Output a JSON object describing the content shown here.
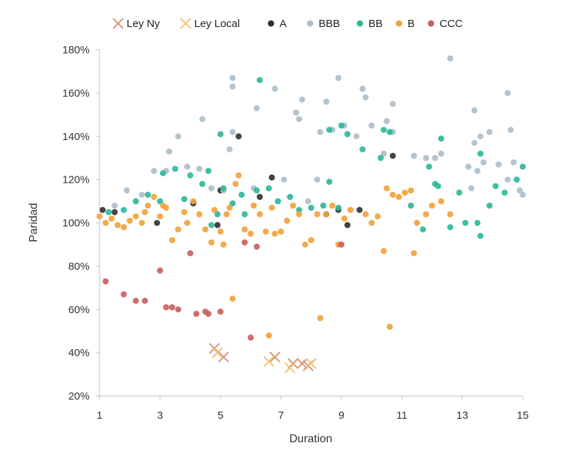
{
  "chart_data": {
    "type": "scatter",
    "title": "",
    "xlabel": "Duration",
    "ylabel": "Paridad",
    "xlim": [
      1,
      15
    ],
    "ylim": [
      20,
      180
    ],
    "x_ticks": [
      1,
      3,
      5,
      7,
      9,
      11,
      13,
      15
    ],
    "y_ticks": [
      20,
      40,
      60,
      80,
      100,
      120,
      140,
      160,
      180
    ],
    "y_tick_labels": [
      "20%",
      "40%",
      "60%",
      "80%",
      "100%",
      "120%",
      "140%",
      "160%",
      "180%"
    ],
    "legend_position": "top",
    "series": [
      {
        "name": "Ley Ny",
        "marker": "x",
        "color": "#d9967a",
        "points": [
          [
            4.8,
            42
          ],
          [
            5.1,
            38
          ],
          [
            6.8,
            38
          ],
          [
            7.4,
            35
          ],
          [
            7.7,
            35
          ],
          [
            7.9,
            34
          ]
        ]
      },
      {
        "name": "Ley Local",
        "marker": "x",
        "color": "#f2c27a",
        "points": [
          [
            4.9,
            40
          ],
          [
            6.6,
            36
          ],
          [
            7.3,
            33
          ],
          [
            8.0,
            35
          ]
        ]
      },
      {
        "name": "A",
        "marker": "dot",
        "color": "#333333",
        "points": [
          [
            1.1,
            106
          ],
          [
            1.5,
            105
          ],
          [
            2.9,
            100
          ],
          [
            4.1,
            109
          ],
          [
            4.9,
            99
          ],
          [
            5.0,
            115
          ],
          [
            5.6,
            140
          ],
          [
            6.3,
            112
          ],
          [
            6.7,
            121
          ],
          [
            8.5,
            104
          ],
          [
            8.9,
            106
          ],
          [
            9.2,
            99
          ],
          [
            9.6,
            106
          ],
          [
            10.7,
            131
          ]
        ]
      },
      {
        "name": "BBB",
        "marker": "dot",
        "color": "#aebfcb",
        "points": [
          [
            1.5,
            108
          ],
          [
            1.9,
            115
          ],
          [
            2.4,
            113
          ],
          [
            2.8,
            124
          ],
          [
            3.2,
            124
          ],
          [
            3.3,
            133
          ],
          [
            3.6,
            140
          ],
          [
            3.9,
            126
          ],
          [
            4.3,
            125
          ],
          [
            4.4,
            148
          ],
          [
            4.7,
            116
          ],
          [
            5.1,
            115
          ],
          [
            5.3,
            134
          ],
          [
            5.4,
            142
          ],
          [
            5.4,
            163
          ],
          [
            5.4,
            167
          ],
          [
            6.1,
            116
          ],
          [
            6.2,
            153
          ],
          [
            6.8,
            162
          ],
          [
            7.1,
            120
          ],
          [
            7.5,
            151
          ],
          [
            7.6,
            148
          ],
          [
            7.7,
            157
          ],
          [
            7.9,
            110
          ],
          [
            8.2,
            120
          ],
          [
            8.3,
            142
          ],
          [
            8.5,
            156
          ],
          [
            8.7,
            143
          ],
          [
            8.9,
            167
          ],
          [
            9.1,
            145
          ],
          [
            9.3,
            106
          ],
          [
            9.5,
            140
          ],
          [
            9.7,
            162
          ],
          [
            9.8,
            158
          ],
          [
            10.0,
            145
          ],
          [
            10.4,
            132
          ],
          [
            10.5,
            147
          ],
          [
            10.7,
            142
          ],
          [
            10.7,
            155
          ],
          [
            11.4,
            131
          ],
          [
            11.8,
            130
          ],
          [
            12.1,
            130
          ],
          [
            12.3,
            132
          ],
          [
            12.6,
            176
          ],
          [
            13.2,
            126
          ],
          [
            13.3,
            116
          ],
          [
            13.4,
            137
          ],
          [
            13.4,
            152
          ],
          [
            13.5,
            124
          ],
          [
            13.6,
            140
          ],
          [
            13.7,
            128
          ],
          [
            13.9,
            142
          ],
          [
            14.2,
            127
          ],
          [
            14.5,
            120
          ],
          [
            14.5,
            160
          ],
          [
            14.6,
            143
          ],
          [
            14.7,
            128
          ],
          [
            14.9,
            115
          ],
          [
            15.0,
            113
          ]
        ]
      },
      {
        "name": "BB",
        "marker": "dot",
        "color": "#2eb89a",
        "points": [
          [
            1.3,
            105
          ],
          [
            1.8,
            106
          ],
          [
            2.2,
            110
          ],
          [
            2.6,
            113
          ],
          [
            3.0,
            110
          ],
          [
            3.1,
            123
          ],
          [
            3.5,
            125
          ],
          [
            3.8,
            111
          ],
          [
            4.0,
            122
          ],
          [
            4.4,
            118
          ],
          [
            4.6,
            124
          ],
          [
            4.7,
            99
          ],
          [
            4.9,
            104
          ],
          [
            5.0,
            141
          ],
          [
            5.1,
            116
          ],
          [
            5.4,
            109
          ],
          [
            5.7,
            113
          ],
          [
            5.8,
            104
          ],
          [
            6.2,
            115
          ],
          [
            6.3,
            166
          ],
          [
            6.6,
            116
          ],
          [
            6.9,
            110
          ],
          [
            7.3,
            112
          ],
          [
            7.6,
            106
          ],
          [
            8.0,
            107
          ],
          [
            8.4,
            108
          ],
          [
            8.6,
            119
          ],
          [
            8.6,
            143
          ],
          [
            8.9,
            107
          ],
          [
            9.0,
            145
          ],
          [
            9.2,
            141
          ],
          [
            9.7,
            134
          ],
          [
            10.3,
            130
          ],
          [
            10.4,
            143
          ],
          [
            10.6,
            142
          ],
          [
            11.3,
            108
          ],
          [
            11.7,
            97
          ],
          [
            11.9,
            126
          ],
          [
            12.1,
            118
          ],
          [
            12.2,
            117
          ],
          [
            12.3,
            139
          ],
          [
            12.6,
            98
          ],
          [
            12.9,
            114
          ],
          [
            13.1,
            100
          ],
          [
            13.5,
            100
          ],
          [
            13.6,
            132
          ],
          [
            13.6,
            94
          ],
          [
            13.9,
            108
          ],
          [
            14.1,
            117
          ],
          [
            14.4,
            114
          ],
          [
            14.8,
            120
          ],
          [
            15.0,
            126
          ]
        ]
      },
      {
        "name": "B",
        "marker": "dot",
        "color": "#f2a33a",
        "points": [
          [
            1.0,
            103
          ],
          [
            1.2,
            100
          ],
          [
            1.4,
            102
          ],
          [
            1.6,
            99
          ],
          [
            1.8,
            98
          ],
          [
            2.0,
            101
          ],
          [
            2.2,
            103
          ],
          [
            2.4,
            100
          ],
          [
            2.5,
            105
          ],
          [
            2.6,
            108
          ],
          [
            2.8,
            112
          ],
          [
            3.0,
            103
          ],
          [
            3.1,
            108
          ],
          [
            3.2,
            107
          ],
          [
            3.4,
            92
          ],
          [
            3.6,
            97
          ],
          [
            3.8,
            105
          ],
          [
            3.9,
            100
          ],
          [
            4.1,
            110
          ],
          [
            4.3,
            104
          ],
          [
            4.5,
            97
          ],
          [
            4.7,
            91
          ],
          [
            4.8,
            106
          ],
          [
            5.0,
            96
          ],
          [
            5.1,
            90
          ],
          [
            5.2,
            104
          ],
          [
            5.3,
            107
          ],
          [
            5.4,
            65
          ],
          [
            5.5,
            118
          ],
          [
            5.6,
            122
          ],
          [
            5.8,
            97
          ],
          [
            6.0,
            95
          ],
          [
            6.1,
            108
          ],
          [
            6.3,
            104
          ],
          [
            6.5,
            96
          ],
          [
            6.6,
            48
          ],
          [
            6.7,
            107
          ],
          [
            6.8,
            95
          ],
          [
            7.0,
            96
          ],
          [
            7.2,
            101
          ],
          [
            7.4,
            108
          ],
          [
            7.6,
            104
          ],
          [
            7.8,
            90
          ],
          [
            8.0,
            92
          ],
          [
            8.2,
            104
          ],
          [
            8.3,
            56
          ],
          [
            8.5,
            104
          ],
          [
            8.7,
            108
          ],
          [
            8.9,
            90
          ],
          [
            9.1,
            102
          ],
          [
            9.3,
            106
          ],
          [
            9.8,
            104
          ],
          [
            10.0,
            100
          ],
          [
            10.2,
            103
          ],
          [
            10.4,
            87
          ],
          [
            10.5,
            116
          ],
          [
            10.6,
            52
          ],
          [
            10.7,
            113
          ],
          [
            10.9,
            112
          ],
          [
            11.1,
            114
          ],
          [
            11.3,
            115
          ],
          [
            11.4,
            86
          ],
          [
            11.5,
            100
          ],
          [
            11.8,
            104
          ],
          [
            12.0,
            108
          ],
          [
            12.3,
            110
          ],
          [
            12.6,
            104
          ]
        ]
      },
      {
        "name": "CCC",
        "marker": "dot",
        "color": "#cc5f5f",
        "points": [
          [
            1.2,
            73
          ],
          [
            1.8,
            67
          ],
          [
            2.2,
            64
          ],
          [
            2.5,
            64
          ],
          [
            3.0,
            78
          ],
          [
            3.2,
            61
          ],
          [
            3.4,
            61
          ],
          [
            3.6,
            60
          ],
          [
            4.0,
            86
          ],
          [
            4.2,
            58
          ],
          [
            4.5,
            59
          ],
          [
            4.6,
            58
          ],
          [
            5.0,
            59
          ],
          [
            5.8,
            91
          ],
          [
            6.0,
            47
          ],
          [
            6.2,
            89
          ],
          [
            9.0,
            90
          ]
        ]
      }
    ]
  }
}
